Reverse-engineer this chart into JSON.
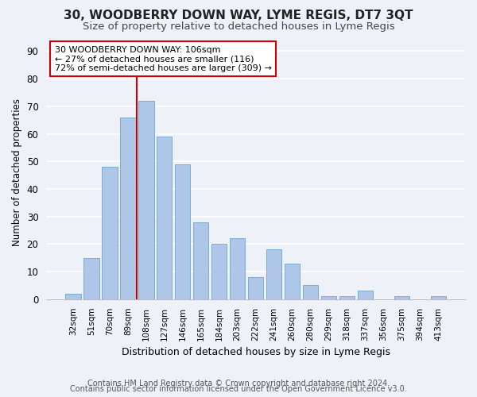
{
  "title": "30, WOODBERRY DOWN WAY, LYME REGIS, DT7 3QT",
  "subtitle": "Size of property relative to detached houses in Lyme Regis",
  "xlabel": "Distribution of detached houses by size in Lyme Regis",
  "ylabel": "Number of detached properties",
  "bar_labels": [
    "32sqm",
    "51sqm",
    "70sqm",
    "89sqm",
    "108sqm",
    "127sqm",
    "146sqm",
    "165sqm",
    "184sqm",
    "203sqm",
    "222sqm",
    "241sqm",
    "260sqm",
    "280sqm",
    "299sqm",
    "318sqm",
    "337sqm",
    "356sqm",
    "375sqm",
    "394sqm",
    "413sqm"
  ],
  "bar_values": [
    2,
    15,
    48,
    66,
    72,
    59,
    49,
    28,
    20,
    22,
    8,
    18,
    13,
    5,
    1,
    1,
    3,
    0,
    1,
    0,
    1
  ],
  "bar_color": "#aec6e8",
  "bar_edgecolor": "#7aadd4",
  "highlight_index": 4,
  "highlight_line_color": "#cc0000",
  "annotation_text": "30 WOODBERRY DOWN WAY: 106sqm\n← 27% of detached houses are smaller (116)\n72% of semi-detached houses are larger (309) →",
  "annotation_box_color": "#ffffff",
  "annotation_box_edgecolor": "#cc0000",
  "ylim": [
    0,
    92
  ],
  "yticks": [
    0,
    10,
    20,
    30,
    40,
    50,
    60,
    70,
    80,
    90
  ],
  "bg_color": "#eef2f8",
  "plot_bg_color": "#eef2f8",
  "grid_color": "#ffffff",
  "footer1": "Contains HM Land Registry data © Crown copyright and database right 2024.",
  "footer2": "Contains public sector information licensed under the Open Government Licence v3.0.",
  "title_fontsize": 11,
  "subtitle_fontsize": 9.5,
  "annotation_fontsize": 8.0,
  "ylabel_fontsize": 8.5,
  "xlabel_fontsize": 9,
  "footer_fontsize": 7.0
}
